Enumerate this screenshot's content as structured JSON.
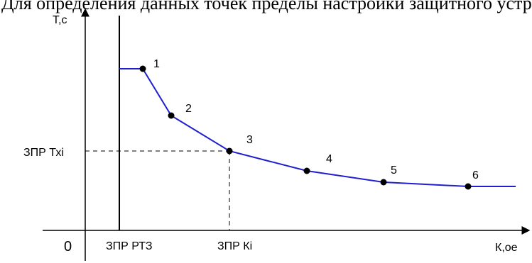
{
  "cut_text": "Для определения данных точек пределы настройки защитного устройства",
  "axes": {
    "y_label": "Т,с",
    "x_label": "К,ое",
    "origin_label": "0"
  },
  "markers": {
    "vertical_line_label": "ЗПР РТЗ",
    "x_marker_label": "ЗПР Кi",
    "y_marker_label": "ЗПР Тхi"
  },
  "curve": {
    "color": "#1f1fcf",
    "points": [
      {
        "label": "1"
      },
      {
        "label": "2"
      },
      {
        "label": "3"
      },
      {
        "label": "4"
      },
      {
        "label": "5"
      },
      {
        "label": "6"
      }
    ]
  }
}
